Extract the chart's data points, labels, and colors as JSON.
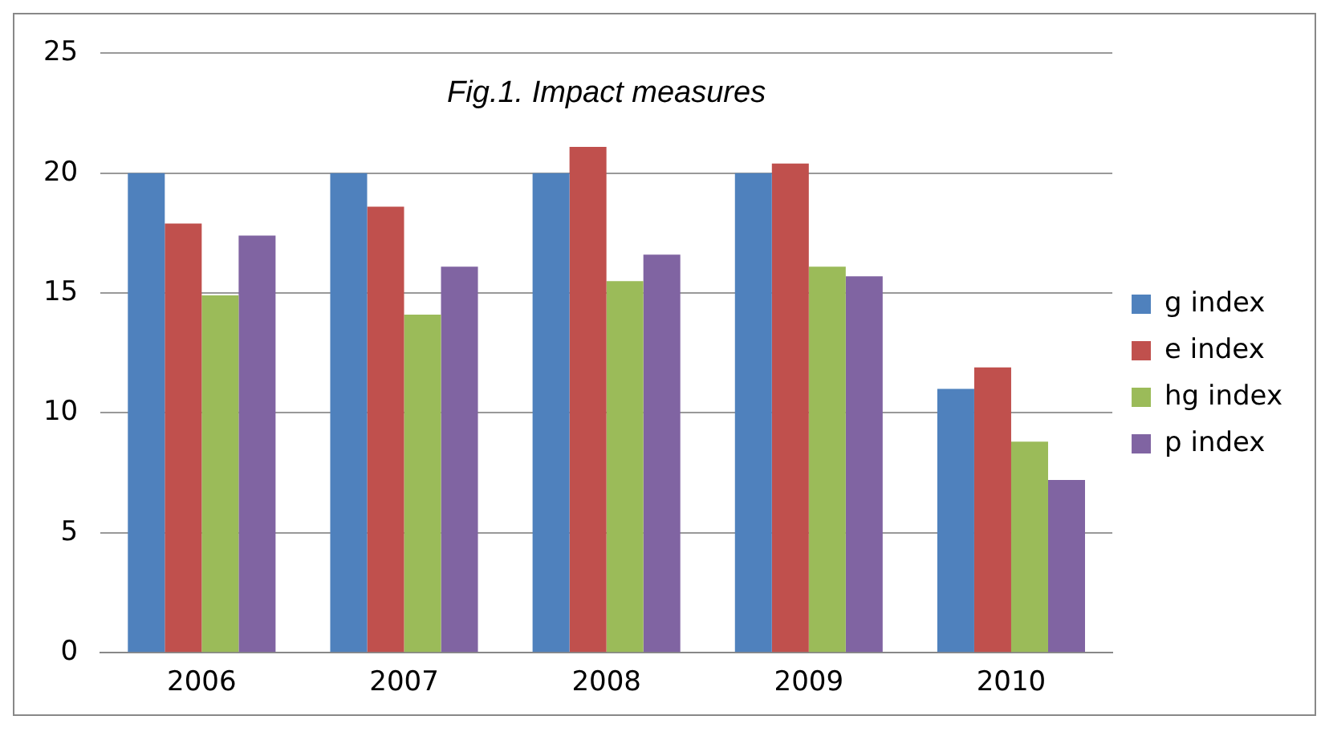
{
  "chart_data": {
    "type": "bar",
    "title": "Fig.1. Impact measures",
    "categories": [
      "2006",
      "2007",
      "2008",
      "2009",
      "2010"
    ],
    "series": [
      {
        "name": "g index",
        "color": "#4f81bd",
        "values": [
          20,
          20,
          20,
          20,
          11.0
        ]
      },
      {
        "name": "e index",
        "color": "#c0504d",
        "values": [
          17.9,
          18.6,
          21.1,
          20.4,
          11.9
        ]
      },
      {
        "name": "hg index",
        "color": "#9bbb59",
        "values": [
          14.9,
          14.1,
          15.5,
          16.1,
          8.8
        ]
      },
      {
        "name": "p index",
        "color": "#8064a2",
        "values": [
          17.4,
          16.1,
          16.6,
          15.7,
          7.2
        ]
      }
    ],
    "ylim": [
      0,
      25
    ],
    "yticks": [
      0,
      5,
      10,
      15,
      20,
      25
    ],
    "grid": "y",
    "legend": "right"
  }
}
